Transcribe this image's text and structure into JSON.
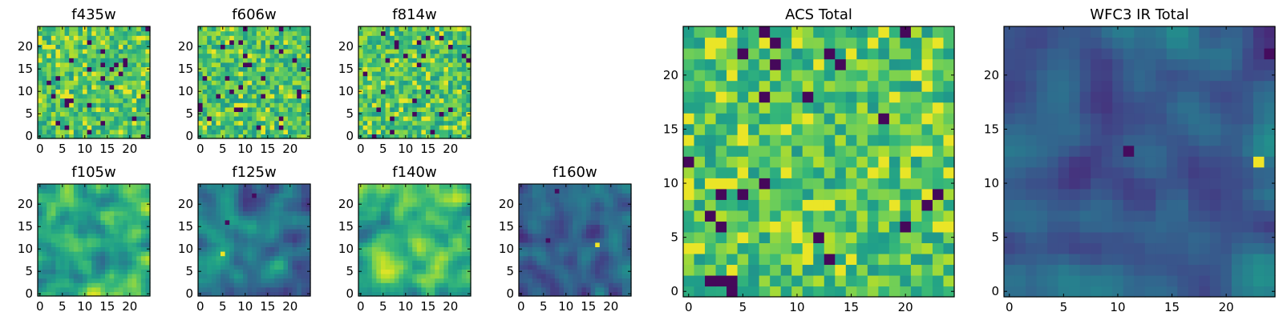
{
  "chart_data": [
    {
      "type": "heatmap",
      "title": "f435w",
      "xlim": [
        -0.5,
        24.5
      ],
      "ylim": [
        -0.5,
        24.5
      ],
      "xticks": [
        0,
        5,
        10,
        15,
        20
      ],
      "yticks": [
        0,
        5,
        10,
        15,
        20
      ],
      "colormap": "viridis",
      "pattern": "noise",
      "seed": 11
    },
    {
      "type": "heatmap",
      "title": "f606w",
      "xlim": [
        -0.5,
        24.5
      ],
      "ylim": [
        -0.5,
        24.5
      ],
      "xticks": [
        0,
        5,
        10,
        15,
        20
      ],
      "yticks": [
        0,
        5,
        10,
        15,
        20
      ],
      "colormap": "viridis",
      "pattern": "noise",
      "seed": 23
    },
    {
      "type": "heatmap",
      "title": "f814w",
      "xlim": [
        -0.5,
        24.5
      ],
      "ylim": [
        -0.5,
        24.5
      ],
      "xticks": [
        0,
        5,
        10,
        15,
        20
      ],
      "yticks": [
        0,
        5,
        10,
        15,
        20
      ],
      "colormap": "viridis",
      "pattern": "noise",
      "seed": 37
    },
    {
      "type": "heatmap",
      "title": "f105w",
      "xlim": [
        -0.5,
        24.5
      ],
      "ylim": [
        -0.5,
        24.5
      ],
      "xticks": [
        0,
        5,
        10,
        15,
        20
      ],
      "yticks": [
        0,
        5,
        10,
        15,
        20
      ],
      "colormap": "viridis",
      "pattern": "smooth_bright",
      "seed": 41
    },
    {
      "type": "heatmap",
      "title": "f125w",
      "xlim": [
        -0.5,
        24.5
      ],
      "ylim": [
        -0.5,
        24.5
      ],
      "xticks": [
        0,
        5,
        10,
        15,
        20
      ],
      "yticks": [
        0,
        5,
        10,
        15,
        20
      ],
      "colormap": "viridis",
      "pattern": "smooth_mid",
      "seed": 53
    },
    {
      "type": "heatmap",
      "title": "f140w",
      "xlim": [
        -0.5,
        24.5
      ],
      "ylim": [
        -0.5,
        24.5
      ],
      "xticks": [
        0,
        5,
        10,
        15,
        20
      ],
      "yticks": [
        0,
        5,
        10,
        15,
        20
      ],
      "colormap": "viridis",
      "pattern": "smooth_bright",
      "seed": 67
    },
    {
      "type": "heatmap",
      "title": "f160w",
      "xlim": [
        -0.5,
        24.5
      ],
      "ylim": [
        -0.5,
        24.5
      ],
      "xticks": [
        0,
        5,
        10,
        15,
        20
      ],
      "yticks": [
        0,
        5,
        10,
        15,
        20
      ],
      "colormap": "viridis",
      "pattern": "smooth_dark",
      "seed": 79
    },
    {
      "type": "heatmap",
      "title": "ACS Total",
      "xlim": [
        -0.5,
        24.5
      ],
      "ylim": [
        -0.5,
        24.5
      ],
      "xticks": [
        0,
        5,
        10,
        15,
        20
      ],
      "yticks": [
        0,
        5,
        10,
        15,
        20
      ],
      "colormap": "viridis",
      "pattern": "noise",
      "seed": 97
    },
    {
      "type": "heatmap",
      "title": "WFC3 IR Total",
      "xlim": [
        -0.5,
        24.5
      ],
      "ylim": [
        -0.5,
        24.5
      ],
      "xticks": [
        0,
        5,
        10,
        15,
        20
      ],
      "yticks": [
        0,
        5,
        10,
        15,
        20
      ],
      "colormap": "viridis",
      "pattern": "smooth_dark",
      "seed": 103
    }
  ]
}
